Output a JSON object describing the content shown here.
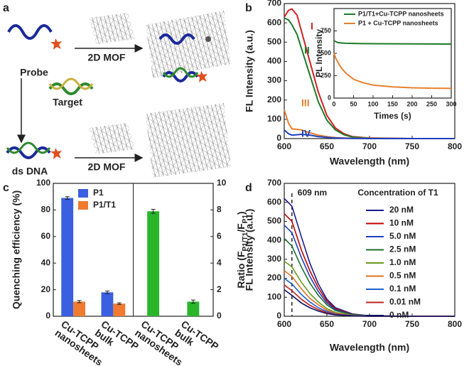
{
  "panel_a": {
    "label": "a",
    "probe": "Probe",
    "mof_top": "2D MOF",
    "target": "Target",
    "dsdna": "ds DNA",
    "mof_bottom": "2D MOF"
  },
  "chart_data": [
    {
      "type": "line",
      "panel": "b",
      "xlabel": "Wavelength (nm)",
      "ylabel": "FL Intensity (a.u.)",
      "x": [
        600,
        605,
        609,
        615,
        620,
        630,
        640,
        650,
        660,
        670,
        680,
        700,
        750,
        800
      ],
      "xlim": [
        600,
        800
      ],
      "xticks": [
        600,
        650,
        700,
        750,
        800
      ],
      "ylim": [
        0,
        700
      ],
      "yticks": [
        0,
        100,
        200,
        300,
        400,
        500,
        600,
        700
      ],
      "series": [
        {
          "name": "I",
          "color": "#d42020",
          "values": [
            630,
            665,
            672,
            640,
            560,
            400,
            240,
            120,
            55,
            25,
            10,
            3,
            0,
            0
          ]
        },
        {
          "name": "II",
          "color": "#1e7a2a",
          "values": [
            625,
            615,
            590,
            540,
            470,
            330,
            190,
            95,
            45,
            20,
            8,
            2,
            0,
            0
          ]
        },
        {
          "name": "III",
          "color": "#e88030",
          "values": [
            150,
            80,
            50,
            48,
            45,
            30,
            18,
            10,
            5,
            3,
            2,
            1,
            0,
            0
          ]
        },
        {
          "name": "IV",
          "color": "#2040c0",
          "values": [
            45,
            25,
            18,
            20,
            22,
            18,
            10,
            6,
            3,
            2,
            1,
            0,
            0,
            0
          ]
        }
      ]
    },
    {
      "type": "line",
      "xlabel": "Times (s)",
      "ylabel": "PL Intensity",
      "x": [
        0,
        5,
        10,
        20,
        30,
        50,
        75,
        100,
        150,
        200,
        250,
        300
      ],
      "xlim": [
        0,
        300
      ],
      "xticks": [
        0,
        50,
        100,
        150,
        200,
        250,
        300
      ],
      "ylim": [
        0,
        1000
      ],
      "yticks": [
        0,
        250,
        500,
        750
      ],
      "series": [
        {
          "name": "P1/T1+Cu-TCPP nanosheets",
          "color": "#1e7a2a",
          "values": [
            640,
            630,
            620,
            615,
            612,
            610,
            608,
            607,
            606,
            605,
            604,
            603
          ]
        },
        {
          "name": "P1 + Cu-TCPP nanosheets",
          "color": "#e88030",
          "values": [
            500,
            440,
            400,
            330,
            280,
            210,
            170,
            145,
            125,
            115,
            110,
            108
          ]
        }
      ]
    },
    {
      "type": "bar",
      "panel": "c",
      "ylabel": "Quenching efficiency (%)",
      "y2label": [
        "Ratio (F",
        "P1/T1",
        "/F",
        "P1",
        ")"
      ],
      "categories": [
        "Cu-TCPP nanosheets",
        "Cu-TCPP bulk",
        "Cu-TCPP nanosheets",
        "Cu-TCPP bulk"
      ],
      "ylim": [
        0,
        100
      ],
      "yticks": [
        0,
        20,
        40,
        60,
        80,
        100
      ],
      "y2lim": [
        0,
        10
      ],
      "y2ticks": [
        0,
        2,
        4,
        6,
        8,
        10
      ],
      "series": [
        {
          "name": "P1",
          "color": "#3a5fe0",
          "values": [
            89,
            18,
            null,
            null
          ],
          "errors": [
            1,
            1,
            null,
            null
          ]
        },
        {
          "name": "P1/T1",
          "color": "#f07a30",
          "values": [
            11,
            9.5,
            null,
            null
          ],
          "errors": [
            0.8,
            0.6,
            null,
            null
          ]
        },
        {
          "color": "#2bb52b",
          "axis": "y2",
          "values": [
            null,
            null,
            7.9,
            1.1
          ],
          "errors": [
            null,
            null,
            0.15,
            0.12
          ]
        }
      ]
    },
    {
      "type": "line",
      "panel": "d",
      "xlabel": "Wavelength (nm)",
      "ylabel": "FL Intensity (a.u.)",
      "annotation": "609 nm",
      "reference_x": 609,
      "legend_title": "Concentration of T1",
      "x": [
        600,
        609,
        620,
        630,
        640,
        650,
        660,
        680,
        700,
        750,
        800
      ],
      "xlim": [
        600,
        800
      ],
      "xticks": [
        600,
        650,
        700,
        750,
        800
      ],
      "ylim": [
        0,
        700
      ],
      "yticks": [
        0,
        100,
        200,
        300,
        400,
        500,
        600,
        700
      ],
      "series": [
        {
          "name": "20 nM",
          "color": "#1a1a8c",
          "values": [
            620,
            580,
            420,
            280,
            170,
            90,
            45,
            12,
            3,
            0,
            0
          ]
        },
        {
          "name": "10 nM",
          "color": "#c00000",
          "values": [
            540,
            500,
            350,
            240,
            150,
            80,
            40,
            10,
            2,
            0,
            0
          ]
        },
        {
          "name": "5.0 nM",
          "color": "#1f3fbf",
          "values": [
            480,
            440,
            310,
            210,
            130,
            70,
            35,
            9,
            2,
            0,
            0
          ]
        },
        {
          "name": "2.5 nM",
          "color": "#1e6e2e",
          "values": [
            410,
            370,
            260,
            175,
            110,
            60,
            30,
            8,
            2,
            0,
            0
          ]
        },
        {
          "name": "1.0 nM",
          "color": "#6a9a20",
          "values": [
            290,
            260,
            180,
            120,
            75,
            40,
            20,
            5,
            1,
            0,
            0
          ]
        },
        {
          "name": "0.5 nM",
          "color": "#e07020",
          "values": [
            240,
            210,
            145,
            95,
            60,
            32,
            16,
            4,
            1,
            0,
            0
          ]
        },
        {
          "name": "0.1 nM",
          "color": "#2060d0",
          "values": [
            200,
            170,
            115,
            75,
            45,
            25,
            12,
            3,
            1,
            0,
            0
          ]
        },
        {
          "name": "0.01 nM",
          "color": "#c02020",
          "values": [
            165,
            135,
            90,
            58,
            35,
            19,
            9,
            2,
            0,
            0,
            0
          ]
        },
        {
          "name": "0 nM",
          "color": "#101060",
          "values": [
            140,
            110,
            70,
            45,
            27,
            14,
            7,
            2,
            0,
            0,
            0
          ]
        }
      ]
    }
  ]
}
